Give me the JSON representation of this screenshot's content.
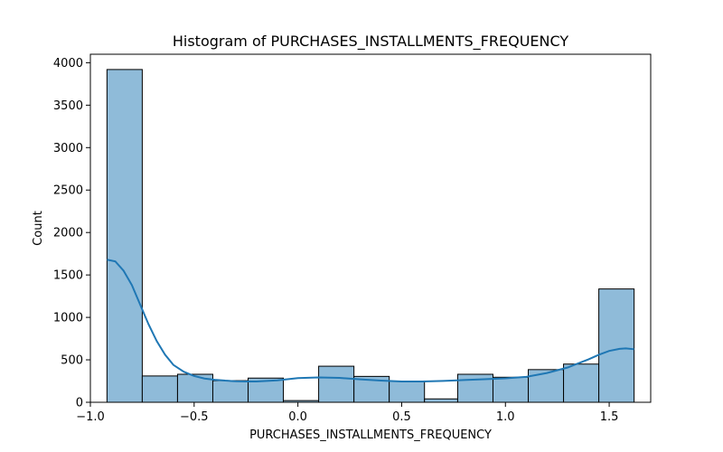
{
  "chart_data": {
    "type": "bar",
    "title": "Histogram of PURCHASES_INSTALLMENTS_FREQUENCY",
    "xlabel": "PURCHASES_INSTALLMENTS_FREQUENCY",
    "ylabel": "Count",
    "xlim": [
      -1.0,
      1.7
    ],
    "ylim": [
      0,
      4100
    ],
    "xticks": [
      -1.0,
      -0.5,
      0.0,
      0.5,
      1.0,
      1.5
    ],
    "xtick_labels": [
      "−1.0",
      "−0.5",
      "0.0",
      "0.5",
      "1.0",
      "1.5"
    ],
    "yticks": [
      0,
      500,
      1000,
      1500,
      2000,
      2500,
      3000,
      3500,
      4000
    ],
    "ytick_labels": [
      "0",
      "500",
      "1000",
      "1500",
      "2000",
      "2500",
      "3000",
      "3500",
      "4000"
    ],
    "bins": [
      {
        "x0": -0.92,
        "x1": -0.75,
        "count": 3920
      },
      {
        "x0": -0.75,
        "x1": -0.58,
        "count": 310
      },
      {
        "x0": -0.58,
        "x1": -0.41,
        "count": 330
      },
      {
        "x0": -0.41,
        "x1": -0.24,
        "count": 255
      },
      {
        "x0": -0.24,
        "x1": -0.07,
        "count": 285
      },
      {
        "x0": -0.07,
        "x1": 0.1,
        "count": 20
      },
      {
        "x0": 0.1,
        "x1": 0.27,
        "count": 425
      },
      {
        "x0": 0.27,
        "x1": 0.44,
        "count": 305
      },
      {
        "x0": 0.44,
        "x1": 0.61,
        "count": 250
      },
      {
        "x0": 0.61,
        "x1": 0.77,
        "count": 40
      },
      {
        "x0": 0.77,
        "x1": 0.94,
        "count": 330
      },
      {
        "x0": 0.94,
        "x1": 1.11,
        "count": 295
      },
      {
        "x0": 1.11,
        "x1": 1.28,
        "count": 385
      },
      {
        "x0": 1.28,
        "x1": 1.45,
        "count": 450
      },
      {
        "x0": 1.45,
        "x1": 1.62,
        "count": 1335
      }
    ],
    "kde": {
      "x": [
        -0.92,
        -0.88,
        -0.84,
        -0.8,
        -0.76,
        -0.72,
        -0.68,
        -0.64,
        -0.6,
        -0.55,
        -0.5,
        -0.45,
        -0.4,
        -0.35,
        -0.3,
        -0.25,
        -0.2,
        -0.1,
        0.0,
        0.1,
        0.2,
        0.3,
        0.4,
        0.5,
        0.6,
        0.7,
        0.8,
        0.9,
        1.0,
        1.1,
        1.2,
        1.3,
        1.4,
        1.45,
        1.5,
        1.55,
        1.58,
        1.62
      ],
      "y": [
        1680,
        1660,
        1550,
        1380,
        1150,
        920,
        720,
        560,
        440,
        360,
        310,
        280,
        265,
        255,
        248,
        245,
        245,
        258,
        285,
        293,
        287,
        270,
        255,
        245,
        245,
        252,
        262,
        272,
        282,
        300,
        345,
        410,
        505,
        560,
        605,
        630,
        635,
        625
      ]
    },
    "bar_fill": "#8fbbd9",
    "bar_stroke": "#000000",
    "line_color": "#1f77b4",
    "grid": false,
    "legend": "none"
  }
}
